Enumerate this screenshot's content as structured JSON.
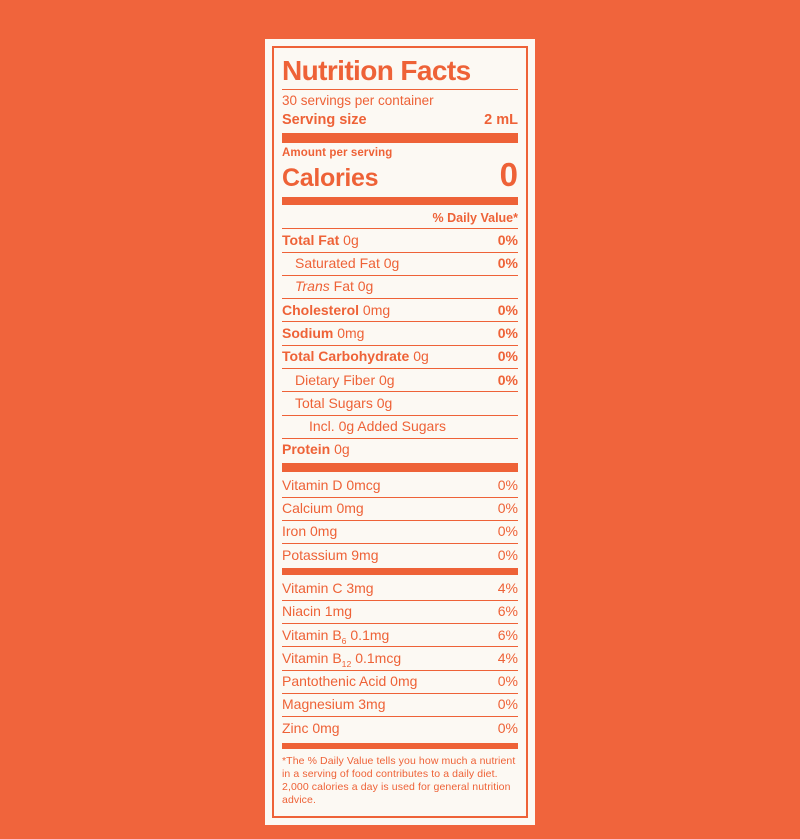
{
  "colors": {
    "page_background": "#F0643C",
    "label_background": "#FCF9F3",
    "accent": "#EE6237"
  },
  "label": {
    "title": "Nutrition Facts",
    "servings_per_container": "30 servings per container",
    "serving_size_label": "Serving size",
    "serving_size_value": "2 mL",
    "amount_per_serving": "Amount per serving",
    "calories_label": "Calories",
    "calories_value": "0",
    "daily_value_header": "% Daily Value*",
    "sections": [
      {
        "rows": [
          {
            "parts": [
              {
                "t": "Total Fat",
                "b": true
              },
              {
                "t": " 0g"
              }
            ],
            "pct": "0%",
            "pct_bold": true,
            "indent": 0
          },
          {
            "parts": [
              {
                "t": "Saturated Fat 0g"
              }
            ],
            "pct": "0%",
            "pct_bold": true,
            "indent": 1
          },
          {
            "parts": [
              {
                "t": "Trans",
                "i": true
              },
              {
                "t": " Fat 0g"
              }
            ],
            "pct": "",
            "indent": 1
          },
          {
            "parts": [
              {
                "t": "Cholesterol",
                "b": true
              },
              {
                "t": " 0mg"
              }
            ],
            "pct": "0%",
            "pct_bold": true,
            "indent": 0
          },
          {
            "parts": [
              {
                "t": "Sodium",
                "b": true
              },
              {
                "t": " 0mg"
              }
            ],
            "pct": "0%",
            "pct_bold": true,
            "indent": 0
          },
          {
            "parts": [
              {
                "t": "Total Carbohydrate",
                "b": true
              },
              {
                "t": " 0g"
              }
            ],
            "pct": "0%",
            "pct_bold": true,
            "indent": 0
          },
          {
            "parts": [
              {
                "t": "Dietary Fiber 0g"
              }
            ],
            "pct": "0%",
            "pct_bold": true,
            "indent": 1
          },
          {
            "parts": [
              {
                "t": "Total Sugars 0g"
              }
            ],
            "pct": "",
            "indent": 1
          },
          {
            "parts": [
              {
                "t": "Incl. 0g Added Sugars"
              }
            ],
            "pct": "",
            "indent": 2
          },
          {
            "parts": [
              {
                "t": "Protein",
                "b": true
              },
              {
                "t": " 0g"
              }
            ],
            "pct": "",
            "indent": 0
          }
        ],
        "divider_after": "thick"
      },
      {
        "rows": [
          {
            "parts": [
              {
                "t": "Vitamin D 0mcg"
              }
            ],
            "pct": "0%",
            "indent": 0
          },
          {
            "parts": [
              {
                "t": "Calcium 0mg"
              }
            ],
            "pct": "0%",
            "indent": 0
          },
          {
            "parts": [
              {
                "t": "Iron 0mg"
              }
            ],
            "pct": "0%",
            "indent": 0
          },
          {
            "parts": [
              {
                "t": "Potassium 9mg"
              }
            ],
            "pct": "0%",
            "indent": 0
          }
        ],
        "divider_after": "medium"
      },
      {
        "rows": [
          {
            "parts": [
              {
                "t": "Vitamin C 3mg"
              }
            ],
            "pct": "4%",
            "indent": 0
          },
          {
            "parts": [
              {
                "t": "Niacin 1mg"
              }
            ],
            "pct": "6%",
            "indent": 0
          },
          {
            "parts": [
              {
                "t": "Vitamin B"
              },
              {
                "t": "6",
                "sub": true
              },
              {
                "t": " 0.1mg"
              }
            ],
            "pct": "6%",
            "indent": 0
          },
          {
            "parts": [
              {
                "t": "Vitamin B"
              },
              {
                "t": "12",
                "sub": true
              },
              {
                "t": " 0.1mcg"
              }
            ],
            "pct": "4%",
            "indent": 0
          },
          {
            "parts": [
              {
                "t": "Pantothenic Acid 0mg"
              }
            ],
            "pct": "0%",
            "indent": 0
          },
          {
            "parts": [
              {
                "t": "Magnesium 3mg"
              }
            ],
            "pct": "0%",
            "indent": 0
          },
          {
            "parts": [
              {
                "t": "Zinc 0mg"
              }
            ],
            "pct": "0%",
            "indent": 0
          }
        ],
        "divider_after": null
      }
    ],
    "footnote": "*The % Daily Value tells you how much a nutrient in a serving of food contributes to a daily diet. 2,000 calories a day is used for general nutrition advice."
  }
}
